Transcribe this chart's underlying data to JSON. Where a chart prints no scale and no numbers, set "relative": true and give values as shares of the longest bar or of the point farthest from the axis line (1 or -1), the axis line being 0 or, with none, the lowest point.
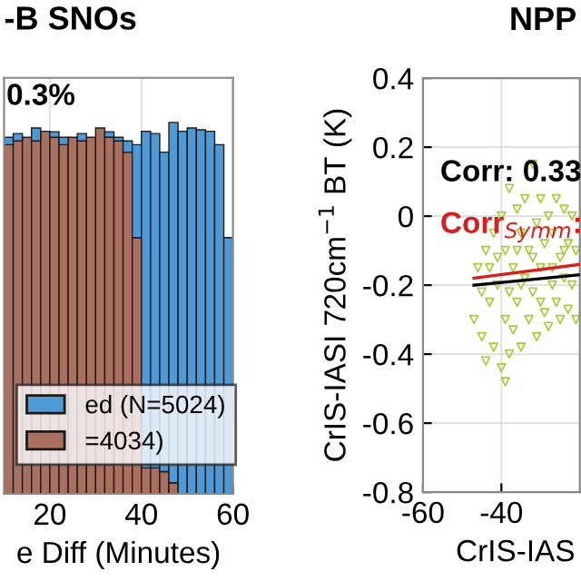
{
  "chart_data": [
    {
      "type": "bar",
      "title": "-B SNOs",
      "xlabel": "e Diff (Minutes)",
      "relative": true,
      "xlim": [
        10,
        60
      ],
      "xticks": [
        20,
        40,
        60
      ],
      "grid": true,
      "legend": "bottom left",
      "stacked": true,
      "annotations": [
        "0.3%"
      ],
      "x": [
        11,
        13,
        15,
        17,
        19,
        21,
        23,
        25,
        27,
        29,
        31,
        33,
        35,
        37,
        39,
        41,
        43,
        45,
        47,
        49,
        51,
        53,
        55,
        57,
        59
      ],
      "series": [
        {
          "name": "=4034)",
          "color": "#a9705f",
          "values": [
            0.94,
            0.95,
            0.96,
            0.95,
            0.976,
            0.96,
            0.94,
            0.96,
            0.95,
            0.96,
            0.985,
            0.96,
            0.95,
            0.92,
            0.69,
            0.07,
            0.07,
            0.06,
            0.03,
            null,
            null,
            null,
            null,
            null,
            null
          ]
        },
        {
          "name": "ed (N=5024)",
          "color": "#4d9ad6",
          "values": [
            0.02,
            0.02,
            null,
            0.035,
            null,
            0.015,
            0.02,
            null,
            0.02,
            null,
            null,
            0.015,
            0.01,
            0.03,
            0.25,
            0.906,
            0.9,
            0.86,
            0.97,
            0.976,
            0.985,
            0.98,
            0.976,
            0.94,
            0.69
          ]
        }
      ]
    },
    {
      "type": "scatter",
      "title": "NPP",
      "xlabel": "CrIS-IAS",
      "ylabel": "CrIS-IASI 720cm$^{−1}$ BT (K)",
      "xlim": [
        -60,
        -20
      ],
      "xticks": [
        -60,
        -40
      ],
      "ylim": [
        -0.8,
        0.4
      ],
      "yticks": [
        -0.8,
        -0.6,
        -0.4,
        -0.2,
        0,
        0.2,
        0.4
      ],
      "grid": true,
      "annotations": [
        "Corr: 0.33",
        "Corr$_{Symm}$:"
      ],
      "series": [
        {
          "color": "#a6cc3c",
          "marker": "triangle",
          "x": [
            -47,
            -46,
            -45,
            -44,
            -44,
            -43,
            -42,
            -42,
            -41,
            -40,
            -40,
            -39,
            -39,
            -38,
            -38,
            -37,
            -37,
            -36,
            -36,
            -35,
            -35,
            -34,
            -34,
            -33,
            -33,
            -32,
            -32,
            -31,
            -31,
            -30,
            -30,
            -29,
            -29,
            -28,
            -28,
            -27,
            -27,
            -26,
            -26,
            -25,
            -25,
            -24,
            -24,
            -23,
            -23,
            -22,
            -22,
            -21,
            -21,
            -32,
            -38,
            -39,
            -45,
            -41,
            -30,
            -27,
            -24,
            -35,
            -43,
            -36
          ],
          "values": [
            -0.3,
            -0.15,
            -0.35,
            -0.1,
            -0.42,
            -0.25,
            -0.05,
            -0.38,
            -0.2,
            0.0,
            -0.44,
            -0.3,
            -0.1,
            0.08,
            -0.4,
            -0.15,
            -0.33,
            0.02,
            -0.25,
            -0.05,
            -0.38,
            -0.18,
            0.05,
            -0.3,
            -0.1,
            0.15,
            -0.22,
            -0.02,
            -0.35,
            0.05,
            -0.15,
            -0.28,
            -0.08,
            0.0,
            -0.32,
            -0.2,
            -0.05,
            0.05,
            -0.25,
            -0.12,
            -0.3,
            0.02,
            -0.18,
            -0.08,
            -0.27,
            0.0,
            -0.2,
            -0.1,
            -0.3,
            -0.12,
            -0.22,
            -0.48,
            -0.22,
            -0.12,
            -0.25,
            -0.15,
            -0.1,
            -0.2,
            -0.15,
            -0.1
          ]
        },
        {
          "type": "line",
          "color": "#000000",
          "x": [
            -47,
            -20
          ],
          "values": [
            -0.2,
            -0.17
          ]
        },
        {
          "type": "line",
          "color": "#d62020",
          "x": [
            -47,
            -20
          ],
          "values": [
            -0.18,
            -0.14
          ]
        }
      ]
    }
  ]
}
